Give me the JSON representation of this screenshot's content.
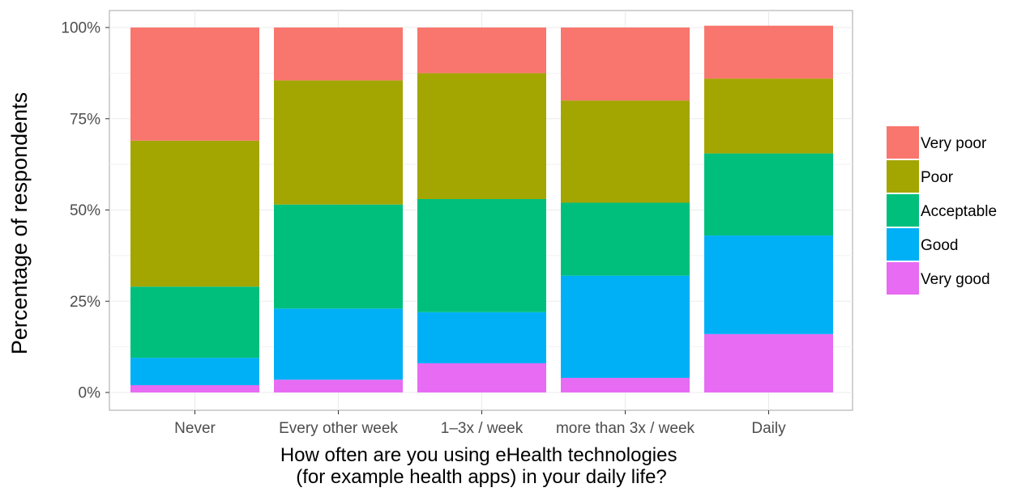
{
  "chart_data": {
    "type": "bar",
    "stacked": true,
    "percent": true,
    "categories": [
      "Never",
      "Every other week",
      "1–3x / week",
      "more than 3x / week",
      "Daily"
    ],
    "series": [
      {
        "name": "Very poor",
        "color": "#F8766D",
        "values": [
          31,
          14.5,
          12.5,
          20,
          14.5
        ]
      },
      {
        "name": "Poor",
        "color": "#A3A500",
        "values": [
          40,
          34,
          34.5,
          28,
          20.5
        ]
      },
      {
        "name": "Acceptable",
        "color": "#00BF7D",
        "values": [
          19.5,
          28.5,
          31,
          20,
          22.5
        ]
      },
      {
        "name": "Good",
        "color": "#00B0F6",
        "values": [
          7.5,
          19.5,
          14,
          28,
          27
        ]
      },
      {
        "name": "Very good",
        "color": "#E76BF3",
        "values": [
          2,
          3.5,
          8,
          4,
          16
        ]
      }
    ],
    "ylim": [
      0,
      100
    ],
    "yticks": [
      "0%",
      "25%",
      "50%",
      "75%",
      "100%"
    ],
    "ytick_values": [
      0,
      25,
      50,
      75,
      100
    ],
    "xlabel_lines": [
      "How often are you using eHealth technologies",
      "(for example health apps) in your daily life?"
    ],
    "ylabel": "Percentage of respondents",
    "grid": true,
    "legend_position": "right",
    "legend_order": [
      "Very poor",
      "Poor",
      "Acceptable",
      "Good",
      "Very good"
    ]
  }
}
